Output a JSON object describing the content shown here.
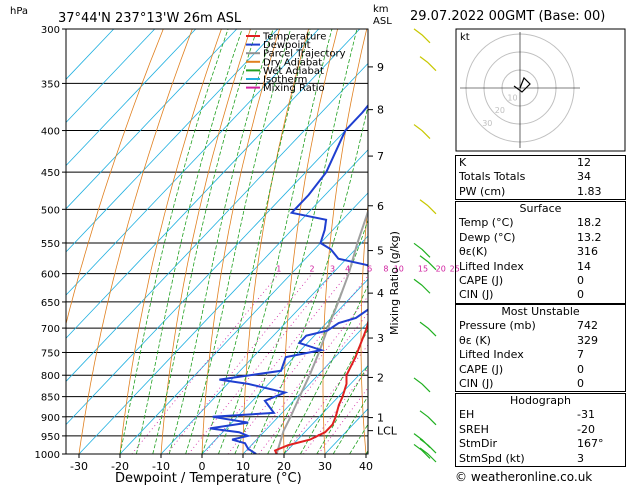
{
  "header": {
    "location": "37°44'N  237°13'W  26m  ASL",
    "datetime": "29.07.2022  00GMT  (Base: 00)",
    "left_unit": "hPa",
    "right_unit_km": "km",
    "right_unit_asl": "ASL"
  },
  "legend": [
    {
      "label": "Temperature",
      "color": "#e02020"
    },
    {
      "label": "Dewpoint",
      "color": "#1f3fd0"
    },
    {
      "label": "Parcel Trajectory",
      "color": "#909090"
    },
    {
      "label": "Dry Adiabat",
      "color": "#e08020"
    },
    {
      "label": "Wet Adiabat",
      "color": "#20a020"
    },
    {
      "label": "Isotherm",
      "color": "#20b0e0"
    },
    {
      "label": "Mixing Ratio",
      "color": "#d020a0"
    }
  ],
  "chart_data": {
    "type": "skew-t",
    "title": "37°44'N  237°13'W  26m  ASL",
    "xlabel": "Dewpoint / Temperature (°C)",
    "ylabel_left": "hPa",
    "ylabel_right": "Mixing Ratio (g/kg)",
    "x_ticks": [
      -30,
      -20,
      -10,
      0,
      10,
      20,
      30,
      40
    ],
    "pressure_levels": [
      300,
      350,
      400,
      450,
      500,
      550,
      600,
      650,
      700,
      750,
      800,
      850,
      900,
      950,
      1000
    ],
    "height_km_ticks": [
      {
        "label": "9",
        "p": 334
      },
      {
        "label": "8",
        "p": 377
      },
      {
        "label": "7",
        "p": 430
      },
      {
        "label": "6",
        "p": 495
      },
      {
        "label": "5",
        "p": 562
      },
      {
        "label": "4",
        "p": 634
      },
      {
        "label": "3",
        "p": 720
      },
      {
        "label": "2",
        "p": 805
      },
      {
        "label": "1",
        "p": 902
      },
      {
        "label": "LCL",
        "p": 936
      }
    ],
    "mixing_ratio_labels": [
      "1",
      "2",
      "3",
      "4",
      "6",
      "8",
      "10",
      "15",
      "20",
      "25"
    ],
    "temperature": [
      {
        "p": 1000,
        "t": 18.2
      },
      {
        "p": 990,
        "t": 17
      },
      {
        "p": 975,
        "t": 19
      },
      {
        "p": 960,
        "t": 23
      },
      {
        "p": 940,
        "t": 25
      },
      {
        "p": 920,
        "t": 25
      },
      {
        "p": 900,
        "t": 24
      },
      {
        "p": 870,
        "t": 22
      },
      {
        "p": 850,
        "t": 21
      },
      {
        "p": 820,
        "t": 19
      },
      {
        "p": 800,
        "t": 17
      },
      {
        "p": 760,
        "t": 15
      },
      {
        "p": 700,
        "t": 11
      },
      {
        "p": 650,
        "t": 6.5
      },
      {
        "p": 600,
        "t": 2
      },
      {
        "p": 550,
        "t": -3
      },
      {
        "p": 500,
        "t": -8
      },
      {
        "p": 475,
        "t": -12
      },
      {
        "p": 450,
        "t": -15
      },
      {
        "p": 400,
        "t": -22
      },
      {
        "p": 350,
        "t": -30
      },
      {
        "p": 340,
        "t": -32
      }
    ],
    "dewpoint": [
      {
        "p": 1000,
        "t": 13.2
      },
      {
        "p": 985,
        "t": 10
      },
      {
        "p": 970,
        "t": 8
      },
      {
        "p": 960,
        "t": 4
      },
      {
        "p": 950,
        "t": 7
      },
      {
        "p": 940,
        "t": 4
      },
      {
        "p": 930,
        "t": -4
      },
      {
        "p": 915,
        "t": 4
      },
      {
        "p": 900,
        "t": -6
      },
      {
        "p": 890,
        "t": 8
      },
      {
        "p": 860,
        "t": 3
      },
      {
        "p": 840,
        "t": 6
      },
      {
        "p": 820,
        "t": -5
      },
      {
        "p": 810,
        "t": -13
      },
      {
        "p": 790,
        "t": 0
      },
      {
        "p": 760,
        "t": -2
      },
      {
        "p": 745,
        "t": 5
      },
      {
        "p": 730,
        "t": -2
      },
      {
        "p": 715,
        "t": -2
      },
      {
        "p": 705,
        "t": 2
      },
      {
        "p": 690,
        "t": 3
      },
      {
        "p": 680,
        "t": 6
      },
      {
        "p": 650,
        "t": 8
      },
      {
        "p": 600,
        "t": 6
      },
      {
        "p": 585,
        "t": -4
      },
      {
        "p": 575,
        "t": -12
      },
      {
        "p": 560,
        "t": -16
      },
      {
        "p": 550,
        "t": -20
      },
      {
        "p": 530,
        "t": -22
      },
      {
        "p": 515,
        "t": -24
      },
      {
        "p": 505,
        "t": -34
      },
      {
        "p": 480,
        "t": -34
      },
      {
        "p": 450,
        "t": -35
      },
      {
        "p": 400,
        "t": -40
      },
      {
        "p": 380,
        "t": -40
      },
      {
        "p": 350,
        "t": -41
      },
      {
        "p": 320,
        "t": -39
      }
    ],
    "parcel": [
      {
        "p": 1000,
        "t": 18.2
      },
      {
        "p": 936,
        "t": 14.5
      },
      {
        "p": 900,
        "t": 13
      },
      {
        "p": 850,
        "t": 10.5
      },
      {
        "p": 800,
        "t": 8
      },
      {
        "p": 750,
        "t": 5
      },
      {
        "p": 700,
        "t": 1.5
      },
      {
        "p": 650,
        "t": -2
      },
      {
        "p": 600,
        "t": -6
      },
      {
        "p": 550,
        "t": -11
      },
      {
        "p": 500,
        "t": -16
      },
      {
        "p": 450,
        "t": -22
      },
      {
        "p": 400,
        "t": -29
      },
      {
        "p": 350,
        "t": -37
      },
      {
        "p": 320,
        "t": -42
      }
    ],
    "wind_barb_levels": [
      305,
      330,
      400,
      495,
      560,
      580,
      620,
      700,
      820,
      900,
      960,
      975,
      990,
      1000
    ]
  },
  "hodograph": {
    "unit_label": "kt",
    "ring_labels": [
      "10",
      "20",
      "30"
    ]
  },
  "indices": [
    {
      "label": "K",
      "value": "12"
    },
    {
      "label": "Totals Totals",
      "value": "34"
    },
    {
      "label": "PW (cm)",
      "value": "1.83"
    }
  ],
  "surface": {
    "title": "Surface",
    "rows": [
      {
        "label": "Temp (°C)",
        "value": "18.2"
      },
      {
        "label": "Dewp (°C)",
        "value": "13.2"
      },
      {
        "label": "θε(K)",
        "value": "316"
      },
      {
        "label": "Lifted Index",
        "value": "14"
      },
      {
        "label": "CAPE (J)",
        "value": "0"
      },
      {
        "label": "CIN (J)",
        "value": "0"
      }
    ]
  },
  "most_unstable": {
    "title": "Most Unstable",
    "rows": [
      {
        "label": "Pressure (mb)",
        "value": "742"
      },
      {
        "label": "θε (K)",
        "value": "329"
      },
      {
        "label": "Lifted Index",
        "value": "7"
      },
      {
        "label": "CAPE (J)",
        "value": "0"
      },
      {
        "label": "CIN (J)",
        "value": "0"
      }
    ]
  },
  "hodograph_table": {
    "title": "Hodograph",
    "rows": [
      {
        "label": "EH",
        "value": "-31"
      },
      {
        "label": "SREH",
        "value": "-20"
      },
      {
        "label": "StmDir",
        "value": "167°"
      },
      {
        "label": "StmSpd (kt)",
        "value": "3"
      }
    ]
  },
  "footer": {
    "copyright": "© weatheronline.co.uk"
  }
}
